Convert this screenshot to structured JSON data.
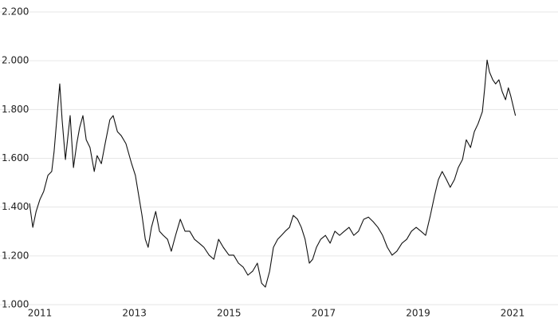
{
  "chart_data": {
    "type": "line",
    "x": [
      2010.78,
      2010.85,
      2010.92,
      2011.0,
      2011.08,
      2011.17,
      2011.25,
      2011.3,
      2011.37,
      2011.42,
      2011.47,
      2011.54,
      2011.64,
      2011.71,
      2011.78,
      2011.84,
      2011.91,
      2011.98,
      2012.06,
      2012.15,
      2012.21,
      2012.3,
      2012.38,
      2012.48,
      2012.55,
      2012.64,
      2012.72,
      2012.82,
      2012.94,
      2013.02,
      2013.09,
      2013.16,
      2013.23,
      2013.29,
      2013.36,
      2013.45,
      2013.53,
      2013.61,
      2013.7,
      2013.78,
      2013.87,
      2013.97,
      2014.07,
      2014.17,
      2014.27,
      2014.37,
      2014.47,
      2014.58,
      2014.68,
      2014.78,
      2014.88,
      2015.0,
      2015.1,
      2015.2,
      2015.3,
      2015.4,
      2015.5,
      2015.6,
      2015.69,
      2015.77,
      2015.86,
      2015.94,
      2016.03,
      2016.11,
      2016.19,
      2016.28,
      2016.36,
      2016.45,
      2016.53,
      2016.61,
      2016.7,
      2016.77,
      2016.85,
      2016.94,
      2017.04,
      2017.14,
      2017.24,
      2017.34,
      2017.44,
      2017.54,
      2017.64,
      2017.74,
      2017.85,
      2017.95,
      2018.05,
      2018.15,
      2018.25,
      2018.35,
      2018.45,
      2018.55,
      2018.66,
      2018.76,
      2018.86,
      2018.96,
      2019.06,
      2019.16,
      2019.26,
      2019.35,
      2019.43,
      2019.51,
      2019.6,
      2019.68,
      2019.77,
      2019.85,
      2019.94,
      2020.02,
      2020.11,
      2020.19,
      2020.27,
      2020.36,
      2020.41,
      2020.46,
      2020.51,
      2020.58,
      2020.64,
      2020.71,
      2020.78,
      2020.85,
      2020.91,
      2020.96,
      2021.02,
      2021.06
    ],
    "series": [
      {
        "color": "#111111",
        "values": [
          1.415,
          1.317,
          1.382,
          1.431,
          1.464,
          1.53,
          1.546,
          1.627,
          1.79,
          1.905,
          1.758,
          1.595,
          1.775,
          1.562,
          1.66,
          1.725,
          1.775,
          1.676,
          1.644,
          1.546,
          1.611,
          1.578,
          1.66,
          1.758,
          1.775,
          1.709,
          1.693,
          1.66,
          1.578,
          1.53,
          1.448,
          1.366,
          1.268,
          1.235,
          1.317,
          1.382,
          1.301,
          1.284,
          1.268,
          1.219,
          1.284,
          1.35,
          1.301,
          1.301,
          1.268,
          1.252,
          1.235,
          1.203,
          1.186,
          1.268,
          1.235,
          1.203,
          1.203,
          1.17,
          1.154,
          1.121,
          1.137,
          1.17,
          1.088,
          1.072,
          1.137,
          1.235,
          1.268,
          1.284,
          1.301,
          1.317,
          1.366,
          1.35,
          1.317,
          1.268,
          1.17,
          1.186,
          1.235,
          1.268,
          1.284,
          1.252,
          1.301,
          1.284,
          1.301,
          1.317,
          1.284,
          1.301,
          1.35,
          1.359,
          1.34,
          1.317,
          1.284,
          1.235,
          1.203,
          1.219,
          1.252,
          1.268,
          1.301,
          1.317,
          1.301,
          1.284,
          1.366,
          1.448,
          1.513,
          1.546,
          1.513,
          1.481,
          1.513,
          1.562,
          1.595,
          1.676,
          1.644,
          1.709,
          1.742,
          1.791,
          1.889,
          2.003,
          1.954,
          1.922,
          1.905,
          1.922,
          1.873,
          1.84,
          1.889,
          1.856,
          1.807,
          1.775
        ]
      }
    ],
    "xlim": [
      2010.78,
      2021.96
    ],
    "xticks": [
      2011,
      2013,
      2015,
      2017,
      2019,
      2021
    ],
    "ylim": [
      1.0,
      2.2
    ],
    "yticks": [
      {
        "value": 1.0,
        "label": "1.000"
      },
      {
        "value": 1.2,
        "label": "1.200"
      },
      {
        "value": 1.4,
        "label": "1.400"
      },
      {
        "value": 1.6,
        "label": "1.600"
      },
      {
        "value": 1.8,
        "label": "1.800"
      },
      {
        "value": 2.0,
        "label": "2.000"
      },
      {
        "value": 2.2,
        "label": "2.200"
      }
    ],
    "grid": true
  }
}
